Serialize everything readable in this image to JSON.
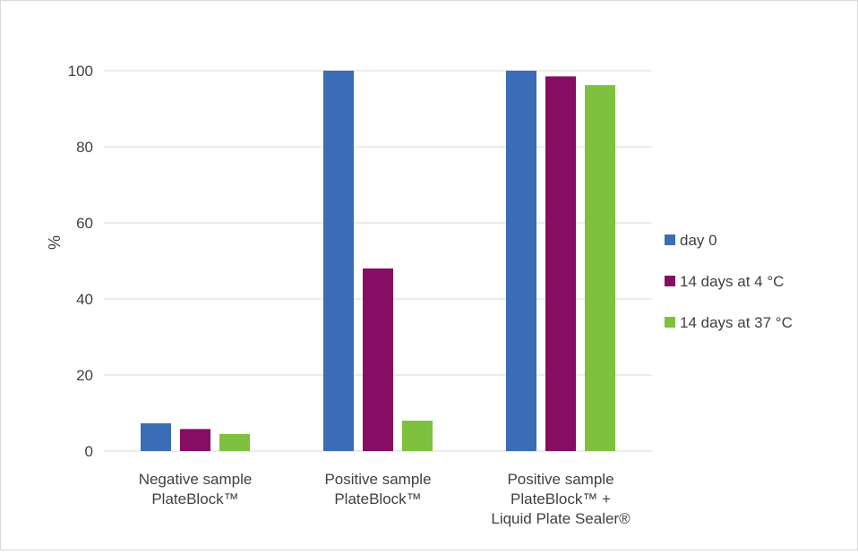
{
  "chart_data": {
    "type": "bar",
    "title": "",
    "xlabel": "",
    "ylabel": "%",
    "ylim": [
      0,
      100
    ],
    "yticks": [
      0,
      20,
      40,
      60,
      80,
      100
    ],
    "grid": true,
    "legend_position": "right",
    "categories": [
      [
        "Negative sample",
        "PlateBlock™"
      ],
      [
        "Positive sample",
        "PlateBlock™"
      ],
      [
        "Positive sample",
        "PlateBlock™ +",
        "Liquid Plate Sealer®"
      ]
    ],
    "series": [
      {
        "name": "day 0",
        "color": "#3a6db5",
        "values": [
          7.3,
          100,
          100
        ]
      },
      {
        "name": "14 days at 4 °C",
        "color": "#860d62",
        "values": [
          5.8,
          48,
          98.5
        ]
      },
      {
        "name": "14 days at 37 °C",
        "color": "#7dc13e",
        "values": [
          4.5,
          8,
          96.2
        ]
      }
    ]
  }
}
